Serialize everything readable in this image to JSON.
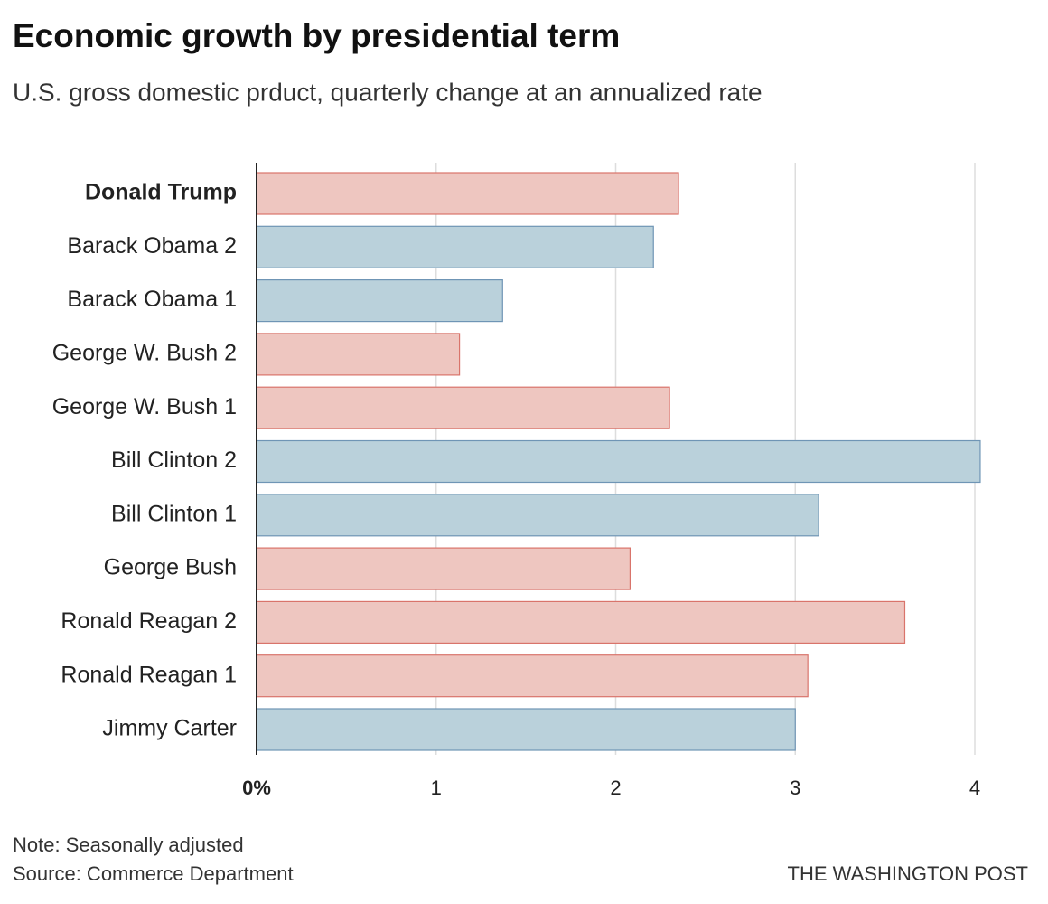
{
  "chart_data": {
    "type": "bar",
    "orientation": "horizontal",
    "title": "Economic growth by presidential term",
    "subtitle": "U.S. gross domestic prduct, quarterly change at an annualized rate",
    "categories": [
      "Donald Trump",
      "Barack Obama 2",
      "Barack Obama 1",
      "George W. Bush 2",
      "George W. Bush 1",
      "Bill Clinton 2",
      "Bill Clinton 1",
      "George Bush",
      "Ronald Reagan 2",
      "Ronald Reagan 1",
      "Jimmy Carter"
    ],
    "values": [
      2.35,
      2.21,
      1.37,
      1.13,
      2.3,
      4.03,
      3.13,
      2.08,
      3.61,
      3.07,
      3.0
    ],
    "colors": [
      "#eec6c0",
      "#bad1db",
      "#bad1db",
      "#eec6c0",
      "#eec6c0",
      "#bad1db",
      "#bad1db",
      "#eec6c0",
      "#eec6c0",
      "#eec6c0",
      "#bad1db"
    ],
    "xlim": [
      0,
      4
    ],
    "xticks": [
      {
        "value": 0,
        "label": "0%"
      },
      1,
      2,
      3,
      4
    ],
    "grid": true,
    "note": "Note: Seasonally adjusted",
    "source": "Source: Commerce Department",
    "credit": "THE WASHINGTON POST"
  }
}
